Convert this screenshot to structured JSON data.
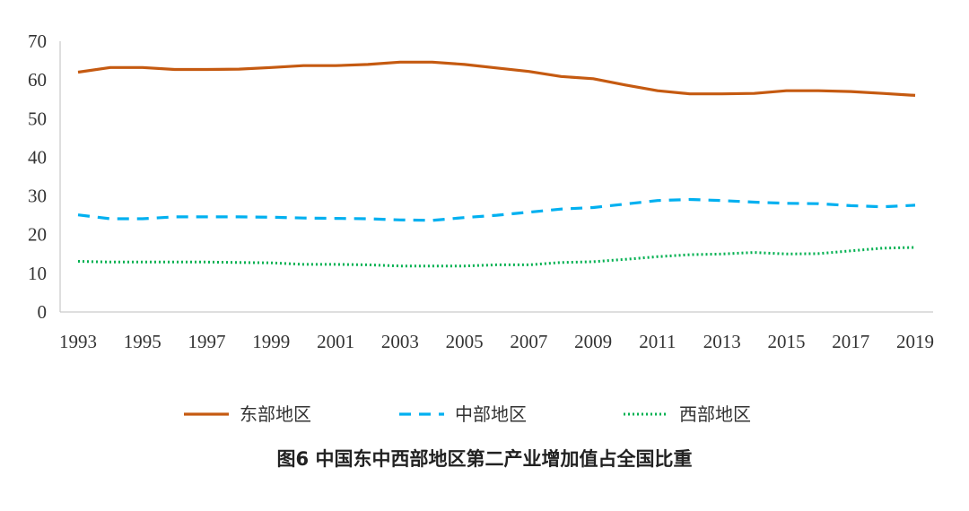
{
  "chart_data": {
    "type": "line",
    "title": "图6  中国东中西部地区第二产业增加值占全国比重",
    "xlabel": "",
    "ylabel": "",
    "ylim": [
      0,
      70
    ],
    "yticks": [
      0,
      10,
      20,
      30,
      40,
      50,
      60,
      70
    ],
    "x": [
      1993,
      1994,
      1995,
      1996,
      1997,
      1998,
      1999,
      2000,
      2001,
      2002,
      2003,
      2004,
      2005,
      2006,
      2007,
      2008,
      2009,
      2010,
      2011,
      2012,
      2013,
      2014,
      2015,
      2016,
      2017,
      2018,
      2019
    ],
    "xtick_labels": [
      "1993",
      "1995",
      "1997",
      "1999",
      "2001",
      "2003",
      "2005",
      "2007",
      "2009",
      "2011",
      "2013",
      "2015",
      "2017",
      "2019"
    ],
    "grid": false,
    "legend_position": "bottom",
    "series": [
      {
        "name": "东部地区",
        "style": "solid",
        "color": "#C55A11",
        "values": [
          62.0,
          63.2,
          63.2,
          62.7,
          62.7,
          62.8,
          63.2,
          63.7,
          63.7,
          64.0,
          64.6,
          64.6,
          64.0,
          63.1,
          62.2,
          60.9,
          60.3,
          58.7,
          57.2,
          56.4,
          56.4,
          56.5,
          57.2,
          57.2,
          57.0,
          56.5,
          56.0
        ]
      },
      {
        "name": "中部地区",
        "style": "dashed",
        "color": "#00B0F0",
        "values": [
          25.1,
          24.1,
          24.1,
          24.6,
          24.6,
          24.6,
          24.5,
          24.3,
          24.2,
          24.1,
          23.8,
          23.7,
          24.4,
          25.0,
          25.8,
          26.6,
          27.0,
          27.9,
          28.8,
          29.1,
          28.8,
          28.4,
          28.1,
          28.0,
          27.5,
          27.2,
          27.6
        ]
      },
      {
        "name": "西部地区",
        "style": "dotted",
        "color": "#00B050",
        "values": [
          13.1,
          12.9,
          12.9,
          12.9,
          12.9,
          12.8,
          12.7,
          12.3,
          12.3,
          12.2,
          11.9,
          11.9,
          11.9,
          12.2,
          12.2,
          12.8,
          13.0,
          13.6,
          14.3,
          14.8,
          15.0,
          15.4,
          15.0,
          15.1,
          15.8,
          16.5,
          16.7
        ]
      }
    ]
  }
}
